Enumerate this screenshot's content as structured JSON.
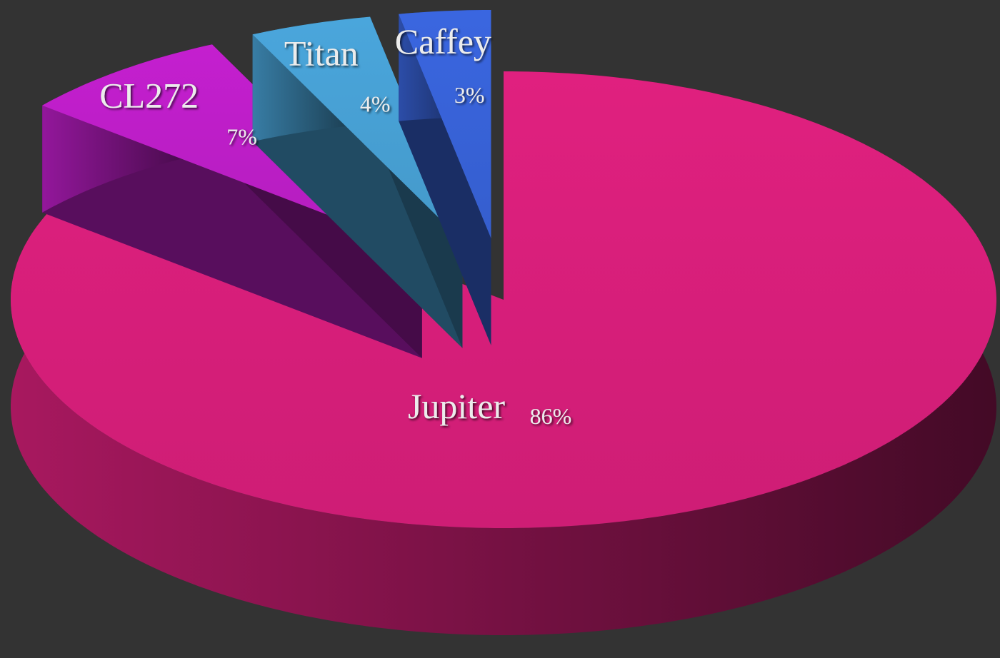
{
  "chart_data": {
    "type": "pie",
    "is_3d": true,
    "categories": [
      "Jupiter",
      "CL272",
      "Titan",
      "Caffey"
    ],
    "values": [
      86,
      7,
      4,
      3
    ],
    "value_labels": [
      "86%",
      "7%",
      "4%",
      "3%"
    ],
    "colors": [
      "#e0207f",
      "#c41fcf",
      "#4aa6dc",
      "#3a66e0"
    ]
  }
}
